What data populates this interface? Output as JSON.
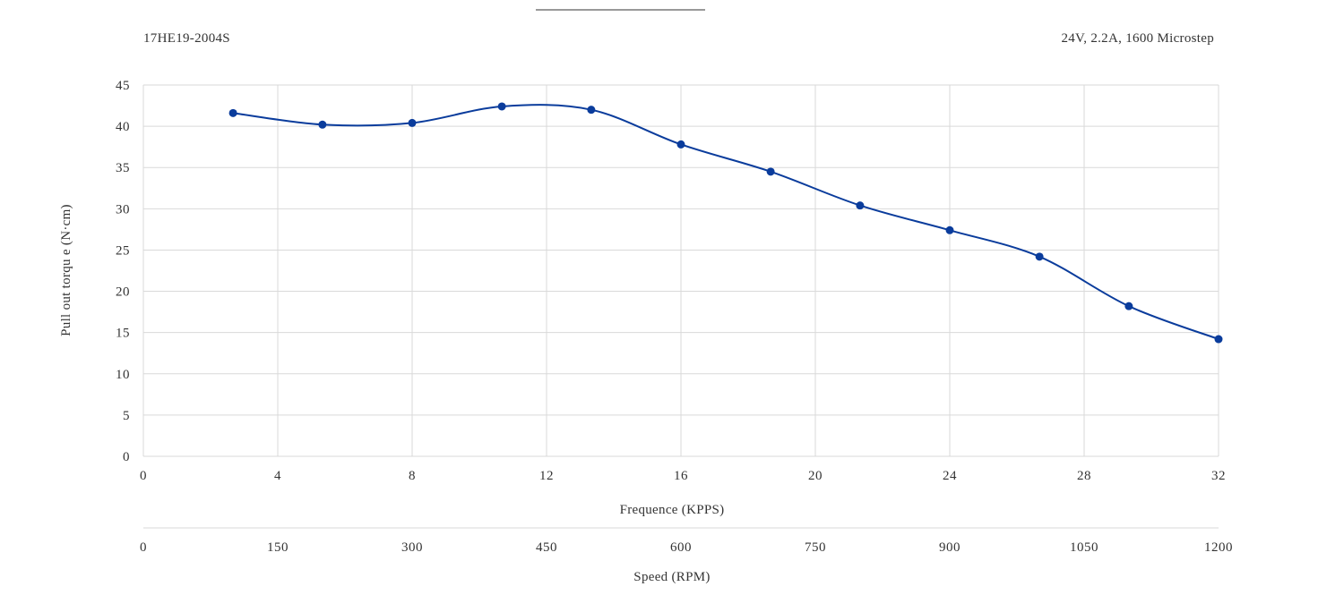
{
  "chart_data": {
    "type": "line",
    "title": "",
    "subtitle_left": "17HE19-2004S",
    "subtitle_right": "24V,  2.2A,  1600 Microstep",
    "xlabel": "Frequence (KPPS)",
    "x2label": "Speed (RPM)",
    "ylabel": "Pull out torqu e (N·cm)",
    "xlim": [
      0,
      32
    ],
    "ylim": [
      0,
      45
    ],
    "x_ticks": [
      "0",
      "4",
      "8",
      "12",
      "16",
      "20",
      "24",
      "28",
      "32"
    ],
    "x2_ticks": [
      "0",
      "150",
      "300",
      "450",
      "600",
      "750",
      "900",
      "1050",
      "1200"
    ],
    "y_ticks": [
      "0",
      "5",
      "10",
      "15",
      "20",
      "25",
      "30",
      "35",
      "40",
      "45"
    ],
    "grid": true,
    "series": [
      {
        "x": [
          2.67,
          5.33,
          8.0,
          10.67,
          13.33,
          16.0,
          18.67,
          21.33,
          24.0,
          26.67,
          29.33,
          32.0
        ],
        "y": [
          41.6,
          40.2,
          40.4,
          42.4,
          42.0,
          37.8,
          34.5,
          30.4,
          27.4,
          24.2,
          18.2,
          14.2
        ],
        "color": "#0a3c9c"
      }
    ]
  }
}
